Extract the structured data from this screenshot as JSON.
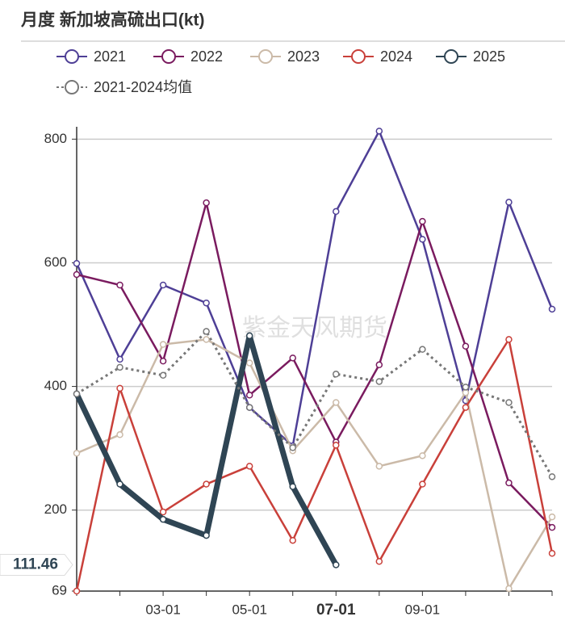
{
  "chart_data": {
    "type": "line",
    "title": "月度 新加坡高硫出口(kt)",
    "watermark": "紫金天风期货",
    "categories": [
      null,
      null,
      "03-01",
      null,
      "05-01",
      null,
      "07-01",
      null,
      "09-01",
      null,
      null,
      null
    ],
    "ylim": [
      69,
      820
    ],
    "yticks": [
      69,
      200,
      400,
      600,
      800
    ],
    "grid": true,
    "pointer_value": 111.46,
    "series": [
      {
        "name": "2021",
        "color": "#4e3f96",
        "values": [
          599,
          444,
          564,
          535,
          366,
          304,
          683,
          813,
          638,
          377,
          698,
          525
        ]
      },
      {
        "name": "2022",
        "color": "#7a1b5f",
        "values": [
          581,
          564,
          441,
          697,
          386,
          446,
          310,
          435,
          667,
          465,
          244,
          172
        ]
      },
      {
        "name": "2023",
        "color": "#cbbaa8",
        "values": [
          292,
          322,
          468,
          476,
          438,
          296,
          374,
          271,
          288,
          390,
          73,
          189
        ]
      },
      {
        "name": "2024",
        "color": "#c9403a",
        "values": [
          69,
          397,
          197,
          242,
          271,
          151,
          305,
          117,
          242,
          366,
          476,
          130
        ]
      },
      {
        "name": "2025",
        "color": "#2f4554",
        "values": [
          388,
          242,
          185,
          159,
          482,
          238,
          111.46,
          null,
          null,
          null,
          null,
          null
        ]
      },
      {
        "name": "2021-2024均值",
        "color": "#777777",
        "dashed": true,
        "values": [
          388,
          431,
          418,
          489,
          366,
          301,
          420,
          408,
          460,
          399,
          374,
          254
        ]
      }
    ]
  }
}
